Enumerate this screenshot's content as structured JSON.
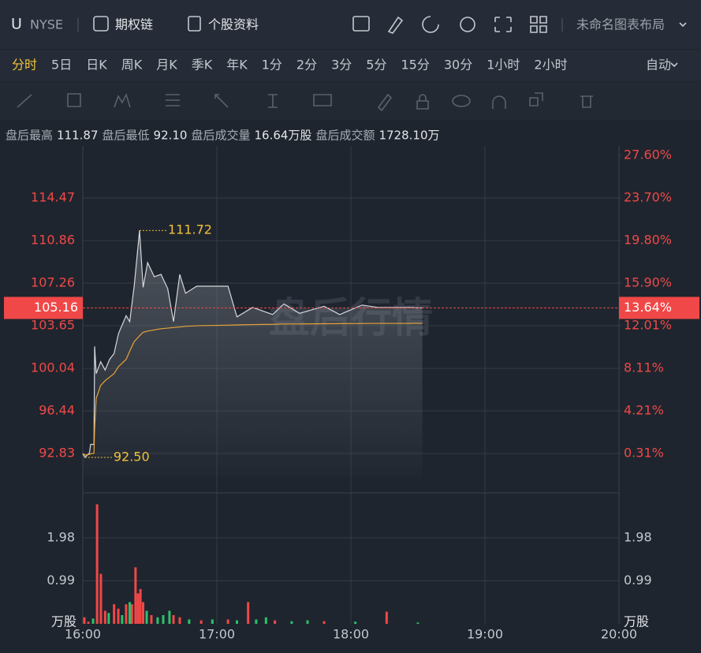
{
  "header": {
    "symbol": "U",
    "exchange": "NYSE",
    "links": [
      "期权链",
      "个股资料"
    ],
    "layout": "未命名图表布局"
  },
  "periods": {
    "items": [
      "分时",
      "5日",
      "日K",
      "周K",
      "月K",
      "季K",
      "年K",
      "1分",
      "2分",
      "3分",
      "5分",
      "15分",
      "30分",
      "1小时",
      "2小时"
    ],
    "active": 0,
    "auto": "自动"
  },
  "info": [
    {
      "label": "盘后最高",
      "value": "111.87"
    },
    {
      "label": "盘后最低",
      "value": "92.10"
    },
    {
      "label": "盘后成交量",
      "value": "16.64万股"
    },
    {
      "label": "盘后成交额",
      "value": "1728.10万"
    }
  ],
  "chart_data": {
    "type": "line",
    "watermark": "盘后行情",
    "x": [
      0,
      1,
      3,
      3.5,
      5,
      5.3,
      6,
      8,
      10,
      12,
      14,
      16,
      19.4,
      21,
      23,
      25.4,
      27,
      29,
      32,
      35,
      38,
      40.6,
      43.4,
      46,
      51,
      65,
      69,
      76,
      85,
      90,
      97,
      108,
      115,
      125,
      132,
      146,
      152
    ],
    "series": [
      {
        "color": "#d6d8dc",
        "values": [
          92.83,
          92.5,
          92.9,
          93.6,
          93.6,
          101.9,
          99.6,
          100.6,
          99.9,
          100.8,
          101.3,
          103,
          104.5,
          104,
          107,
          111.72,
          106.9,
          109,
          107.8,
          108,
          106.8,
          104,
          108,
          106.4,
          107,
          107,
          104.4,
          105.2,
          104.6,
          105.5,
          104.7,
          105.3,
          104.6,
          105.4,
          105.2,
          105.2,
          105.16
        ]
      },
      {
        "color": "#e8a33c",
        "values": [
          92.83,
          92.7,
          92.75,
          92.8,
          92.85,
          95,
          97.5,
          98.6,
          99,
          99.3,
          99.6,
          100.2,
          100.8,
          101.5,
          102.3,
          102.8,
          103.1,
          103.2,
          103.3,
          103.4,
          103.45,
          103.5,
          103.55,
          103.6,
          103.65,
          103.7,
          103.72,
          103.75,
          103.77,
          103.8,
          103.8,
          103.82,
          103.83,
          103.84,
          103.85,
          103.85,
          103.85
        ]
      }
    ],
    "xlim": [
      0,
      240
    ],
    "xticks": [
      {
        "value": 0,
        "label": "16:00"
      },
      {
        "value": 60,
        "label": "17:00"
      },
      {
        "value": 120,
        "label": "18:00"
      },
      {
        "value": 180,
        "label": "19:00"
      },
      {
        "value": 240,
        "label": "20:00"
      }
    ],
    "ylim": [
      90.83,
      118.88
    ],
    "yticks": [
      92.83,
      96.44,
      100.04,
      103.65,
      107.26,
      110.86,
      114.47
    ],
    "y2lim": [
      -1.86,
      28.47
    ],
    "y2ticks": [
      {
        "value": 0.31,
        "label": "0.31%"
      },
      {
        "value": 4.21,
        "label": "4.21%"
      },
      {
        "value": 8.11,
        "label": "8.11%"
      },
      {
        "value": 12.01,
        "label": "12.01%"
      },
      {
        "value": 15.9,
        "label": "15.90%"
      },
      {
        "value": 19.8,
        "label": "19.80%"
      },
      {
        "value": 23.7,
        "label": "23.70%"
      },
      {
        "value": 27.6,
        "label": "27.60%"
      }
    ],
    "last": {
      "value": 105.16,
      "pct": {
        "value": 13.64,
        "label": "13.64%"
      },
      "color": "#f04848"
    },
    "annotations": [
      {
        "x": 25.4,
        "value": 111.72
      },
      {
        "x": 1,
        "value": {
          "value": 92.5,
          "label": "92.50"
        }
      }
    ],
    "volume": {
      "unit": "万股",
      "ylim": [
        0,
        2.74
      ],
      "yticks": [
        1.98,
        0.99
      ],
      "x": [
        0.7,
        2.5,
        4.6,
        6.4,
        8.1,
        10,
        11.6,
        14,
        15.9,
        17.6,
        19.4,
        21,
        22,
        23.6,
        24.7,
        25.8,
        27,
        28.6,
        30.7,
        33.5,
        36,
        38.8,
        40.6,
        43.4,
        47.6,
        53,
        58,
        65,
        69,
        74,
        77.6,
        82,
        86,
        93.5,
        100.6,
        108,
        122,
        136,
        150
      ],
      "values": [
        0.15,
        0.05,
        0.12,
        2.75,
        1.15,
        0.3,
        0.25,
        0.45,
        0.35,
        0.2,
        0.45,
        0.5,
        0.45,
        1.3,
        0.7,
        0.8,
        0.5,
        0.3,
        0.2,
        0.15,
        0.2,
        0.3,
        0.2,
        0.15,
        0.1,
        0.08,
        0.1,
        0.1,
        0.08,
        0.5,
        0.1,
        0.15,
        0.08,
        0.06,
        0.08,
        0.06,
        0.05,
        0.28,
        0.03
      ],
      "colors": [
        "#f04848",
        "#f04848",
        "#2bc26a",
        "#f04848",
        "#f04848",
        "#f04848",
        "#2bc26a",
        "#f04848",
        "#f04848",
        "#2bc26a",
        "#f04848",
        "#2bc26a",
        "#f04848",
        "#f04848",
        "#f04848",
        "#f04848",
        "#f04848",
        "#2bc26a",
        "#f04848",
        "#2bc26a",
        "#2bc26a",
        "#2bc26a",
        "#f04848",
        "#f04848",
        "#2bc26a",
        "#f04848",
        "#2bc26a",
        "#f04848",
        "#2bc26a",
        "#f04848",
        "#2bc26a",
        "#2bc26a",
        "#f04848",
        "#2bc26a",
        "#2bc26a",
        "#f04848",
        "#2bc26a",
        "#f04848",
        "#2bc26a"
      ]
    }
  }
}
